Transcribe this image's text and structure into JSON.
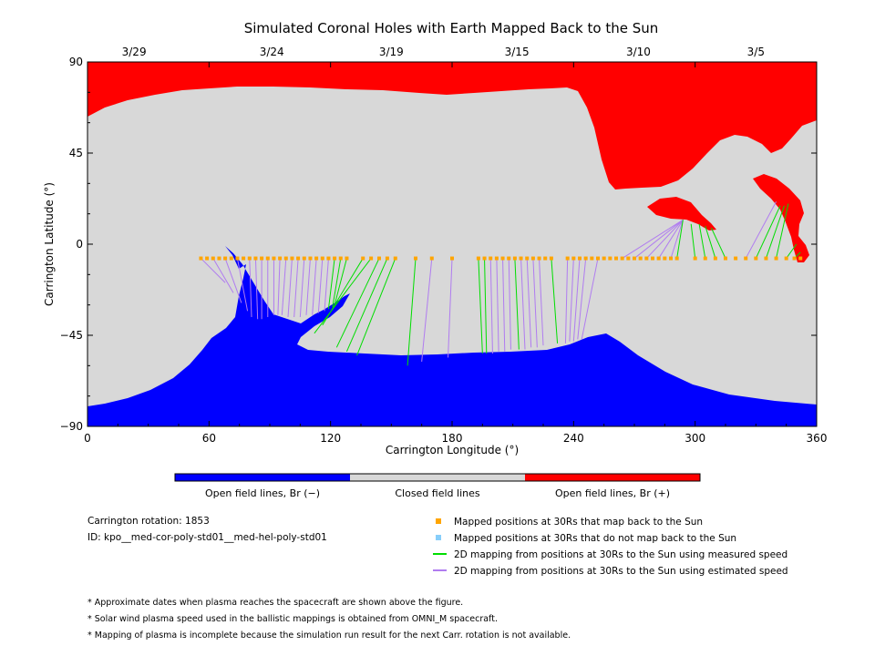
{
  "chart_data": {
    "type": "scatter",
    "title": "Simulated Coronal Holes with Earth Mapped Back to the Sun",
    "xlabel": "Carrington Longitude (°)",
    "ylabel": "Carrington Latitude (°)",
    "xlim": [
      0,
      360
    ],
    "ylim": [
      -90,
      90
    ],
    "x_ticks": [
      0,
      60,
      120,
      180,
      240,
      300,
      360
    ],
    "y_ticks": [
      90,
      45,
      0,
      -45,
      -90
    ],
    "y_tick_labels": [
      "90",
      "45",
      "0",
      "−45",
      "−90"
    ],
    "top_axis_dates": [
      {
        "lon": 23,
        "label": "3/29"
      },
      {
        "lon": 91,
        "label": "3/24"
      },
      {
        "lon": 150,
        "label": "3/19"
      },
      {
        "lon": 212,
        "label": "3/15"
      },
      {
        "lon": 272,
        "label": "3/10"
      },
      {
        "lon": 330,
        "label": "3/5"
      }
    ],
    "colors": {
      "open_negative": "#0000ff",
      "closed": "#d8d8d8",
      "open_positive": "#ff0000",
      "mapped": "#ffa500",
      "unmapped": "#87cefa",
      "measured": "#00dd00",
      "estimated": "#b07cf0"
    },
    "footpoint_latitude": -7,
    "mapped_longitudes": [
      56,
      59,
      62,
      65,
      68,
      71,
      74,
      77,
      80,
      83,
      86,
      89,
      92,
      95,
      98,
      101,
      104,
      107,
      110,
      113,
      116,
      119,
      122,
      125,
      128,
      136,
      140,
      144,
      148,
      152,
      162,
      170,
      180,
      193,
      196,
      199,
      202,
      205,
      208,
      211,
      214,
      217,
      220,
      223,
      226,
      229,
      237,
      240,
      243,
      246,
      249,
      252,
      255,
      258,
      261,
      264,
      267,
      270,
      273,
      276,
      279,
      282,
      285,
      288,
      291,
      300,
      305,
      310,
      315,
      320,
      325,
      330,
      335,
      340,
      345,
      349,
      352
    ],
    "mapping_lines": [
      {
        "x1": 56,
        "y1": -7,
        "x2": 68,
        "y2": -19,
        "type": "estimated"
      },
      {
        "x1": 62,
        "y1": -7,
        "x2": 72,
        "y2": -24,
        "type": "estimated"
      },
      {
        "x1": 68,
        "y1": -7,
        "x2": 76,
        "y2": -29,
        "type": "estimated"
      },
      {
        "x1": 74,
        "y1": -7,
        "x2": 79,
        "y2": -33,
        "type": "estimated"
      },
      {
        "x1": 80,
        "y1": -7,
        "x2": 81,
        "y2": -36,
        "type": "estimated"
      },
      {
        "x1": 83,
        "y1": -7,
        "x2": 84,
        "y2": -37,
        "type": "estimated"
      },
      {
        "x1": 86,
        "y1": -7,
        "x2": 86,
        "y2": -37,
        "type": "estimated"
      },
      {
        "x1": 89,
        "y1": -7,
        "x2": 89,
        "y2": -36,
        "type": "estimated"
      },
      {
        "x1": 92,
        "y1": -7,
        "x2": 92,
        "y2": -35,
        "type": "estimated"
      },
      {
        "x1": 95,
        "y1": -7,
        "x2": 94,
        "y2": -35,
        "type": "estimated"
      },
      {
        "x1": 98,
        "y1": -7,
        "x2": 96,
        "y2": -35,
        "type": "estimated"
      },
      {
        "x1": 101,
        "y1": -7,
        "x2": 99,
        "y2": -36,
        "type": "estimated"
      },
      {
        "x1": 104,
        "y1": -7,
        "x2": 102,
        "y2": -36,
        "type": "estimated"
      },
      {
        "x1": 107,
        "y1": -7,
        "x2": 105,
        "y2": -36,
        "type": "estimated"
      },
      {
        "x1": 110,
        "y1": -7,
        "x2": 108,
        "y2": -35,
        "type": "estimated"
      },
      {
        "x1": 113,
        "y1": -7,
        "x2": 111,
        "y2": -35,
        "type": "estimated"
      },
      {
        "x1": 116,
        "y1": -7,
        "x2": 114,
        "y2": -34,
        "type": "estimated"
      },
      {
        "x1": 119,
        "y1": -7,
        "x2": 117,
        "y2": -33,
        "type": "estimated"
      },
      {
        "x1": 122,
        "y1": -7,
        "x2": 119,
        "y2": -32,
        "type": "measured"
      },
      {
        "x1": 125,
        "y1": -7,
        "x2": 121,
        "y2": -31,
        "type": "measured"
      },
      {
        "x1": 128,
        "y1": -7,
        "x2": 122,
        "y2": -30,
        "type": "measured"
      },
      {
        "x1": 136,
        "y1": -7,
        "x2": 116,
        "y2": -40,
        "type": "measured"
      },
      {
        "x1": 140,
        "y1": -7,
        "x2": 112,
        "y2": -44,
        "type": "measured"
      },
      {
        "x1": 144,
        "y1": -7,
        "x2": 123,
        "y2": -51,
        "type": "measured"
      },
      {
        "x1": 148,
        "y1": -7,
        "x2": 128,
        "y2": -53,
        "type": "measured"
      },
      {
        "x1": 152,
        "y1": -7,
        "x2": 133,
        "y2": -55,
        "type": "measured"
      },
      {
        "x1": 162,
        "y1": -7,
        "x2": 158,
        "y2": -60,
        "type": "measured"
      },
      {
        "x1": 170,
        "y1": -7,
        "x2": 165,
        "y2": -58,
        "type": "estimated"
      },
      {
        "x1": 180,
        "y1": -7,
        "x2": 178,
        "y2": -56,
        "type": "estimated"
      },
      {
        "x1": 193,
        "y1": -7,
        "x2": 195,
        "y2": -54,
        "type": "measured"
      },
      {
        "x1": 196,
        "y1": -7,
        "x2": 197,
        "y2": -54,
        "type": "measured"
      },
      {
        "x1": 199,
        "y1": -7,
        "x2": 200,
        "y2": -54,
        "type": "estimated"
      },
      {
        "x1": 202,
        "y1": -7,
        "x2": 203,
        "y2": -53,
        "type": "estimated"
      },
      {
        "x1": 205,
        "y1": -7,
        "x2": 206,
        "y2": -53,
        "type": "estimated"
      },
      {
        "x1": 208,
        "y1": -7,
        "x2": 209,
        "y2": -52,
        "type": "estimated"
      },
      {
        "x1": 211,
        "y1": -7,
        "x2": 213,
        "y2": -52,
        "type": "measured"
      },
      {
        "x1": 214,
        "y1": -7,
        "x2": 216,
        "y2": -52,
        "type": "estimated"
      },
      {
        "x1": 217,
        "y1": -7,
        "x2": 219,
        "y2": -51,
        "type": "estimated"
      },
      {
        "x1": 220,
        "y1": -7,
        "x2": 222,
        "y2": -51,
        "type": "estimated"
      },
      {
        "x1": 223,
        "y1": -7,
        "x2": 225,
        "y2": -50,
        "type": "estimated"
      },
      {
        "x1": 229,
        "y1": -7,
        "x2": 232,
        "y2": -49,
        "type": "measured"
      },
      {
        "x1": 237,
        "y1": -7,
        "x2": 236,
        "y2": -49,
        "type": "estimated"
      },
      {
        "x1": 240,
        "y1": -7,
        "x2": 238,
        "y2": -48,
        "type": "estimated"
      },
      {
        "x1": 243,
        "y1": -7,
        "x2": 240,
        "y2": -48,
        "type": "estimated"
      },
      {
        "x1": 246,
        "y1": -7,
        "x2": 242,
        "y2": -47,
        "type": "estimated"
      },
      {
        "x1": 252,
        "y1": -7,
        "x2": 244,
        "y2": -47,
        "type": "estimated"
      },
      {
        "x1": 264,
        "y1": -7,
        "x2": 294,
        "y2": 12,
        "type": "estimated"
      },
      {
        "x1": 270,
        "y1": -7,
        "x2": 294,
        "y2": 12,
        "type": "estimated"
      },
      {
        "x1": 276,
        "y1": -7,
        "x2": 294,
        "y2": 12,
        "type": "estimated"
      },
      {
        "x1": 282,
        "y1": -7,
        "x2": 294,
        "y2": 12,
        "type": "estimated"
      },
      {
        "x1": 288,
        "y1": -7,
        "x2": 294,
        "y2": 12,
        "type": "estimated"
      },
      {
        "x1": 291,
        "y1": -7,
        "x2": 294,
        "y2": 12,
        "type": "measured"
      },
      {
        "x1": 300,
        "y1": -7,
        "x2": 298,
        "y2": 10,
        "type": "measured"
      },
      {
        "x1": 305,
        "y1": -7,
        "x2": 302,
        "y2": 10,
        "type": "measured"
      },
      {
        "x1": 310,
        "y1": -7,
        "x2": 305,
        "y2": 9,
        "type": "measured"
      },
      {
        "x1": 315,
        "y1": -7,
        "x2": 308,
        "y2": 8,
        "type": "measured"
      },
      {
        "x1": 330,
        "y1": -7,
        "x2": 342,
        "y2": 19,
        "type": "measured"
      },
      {
        "x1": 335,
        "y1": -7,
        "x2": 344,
        "y2": 19,
        "type": "measured"
      },
      {
        "x1": 340,
        "y1": -7,
        "x2": 346,
        "y2": 20,
        "type": "measured"
      },
      {
        "x1": 325,
        "y1": -7,
        "x2": 340,
        "y2": 21,
        "type": "estimated"
      },
      {
        "x1": 345,
        "y1": -7,
        "x2": 350,
        "y2": 0,
        "type": "measured"
      },
      {
        "x1": 349,
        "y1": -7,
        "x2": 352,
        "y2": -4,
        "type": "measured"
      }
    ],
    "colorbar_labels": [
      "Open field lines, Br (−)",
      "Closed field lines",
      "Open field lines, Br (+)"
    ],
    "legend": [
      {
        "key": "mapped",
        "label": "Mapped positions at 30Rs that map back to the Sun"
      },
      {
        "key": "unmapped",
        "label": "Mapped positions at 30Rs that do not map back to the Sun"
      },
      {
        "key": "measured",
        "label": "2D mapping from positions at 30Rs to the Sun using measured speed"
      },
      {
        "key": "estimated",
        "label": "2D mapping from positions at 30Rs to the Sun using estimated speed"
      }
    ]
  },
  "info": {
    "rotation": "Carrington rotation: 1853",
    "id": "ID: kpo__med-cor-poly-std01__med-hel-poly-std01"
  },
  "notes": [
    "* Approximate dates when plasma reaches the spacecraft are shown above the figure.",
    "* Solar wind plasma speed used in the ballistic mappings is obtained from OMNI_M spacecraft.",
    "* Mapping of plasma is incomplete because the simulation run result for the next Carr. rotation is not available."
  ]
}
